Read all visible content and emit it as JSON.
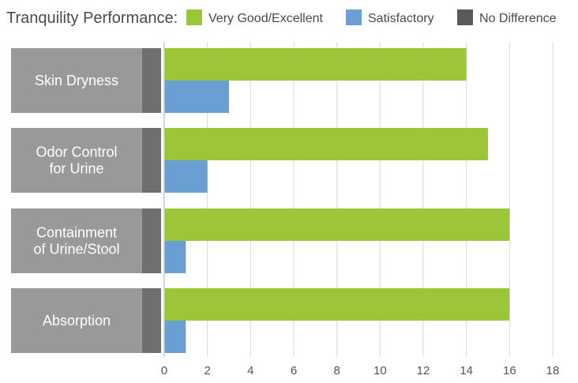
{
  "chart_data": {
    "type": "bar",
    "orientation": "horizontal",
    "title": "Tranquility Performance:",
    "categories": [
      [
        "Skin Dryness"
      ],
      [
        "Odor Control",
        "for Urine"
      ],
      [
        "Containment",
        "of Urine/Stool"
      ],
      [
        "Absorption"
      ]
    ],
    "series": [
      {
        "name": "Very Good/Excellent",
        "color": "#9dc53a",
        "values": [
          14,
          15,
          16,
          16
        ]
      },
      {
        "name": "Satisfactory",
        "color": "#6a9fd4",
        "values": [
          3,
          2,
          1,
          1
        ]
      },
      {
        "name": "No Difference",
        "color": "#5a5a5a",
        "values": [
          0,
          0,
          0,
          0
        ]
      }
    ],
    "x_ticks": [
      0,
      2,
      4,
      6,
      8,
      10,
      12,
      14,
      16,
      18
    ],
    "xlim": [
      0,
      18
    ],
    "grid": true,
    "legend_placement": "top"
  }
}
